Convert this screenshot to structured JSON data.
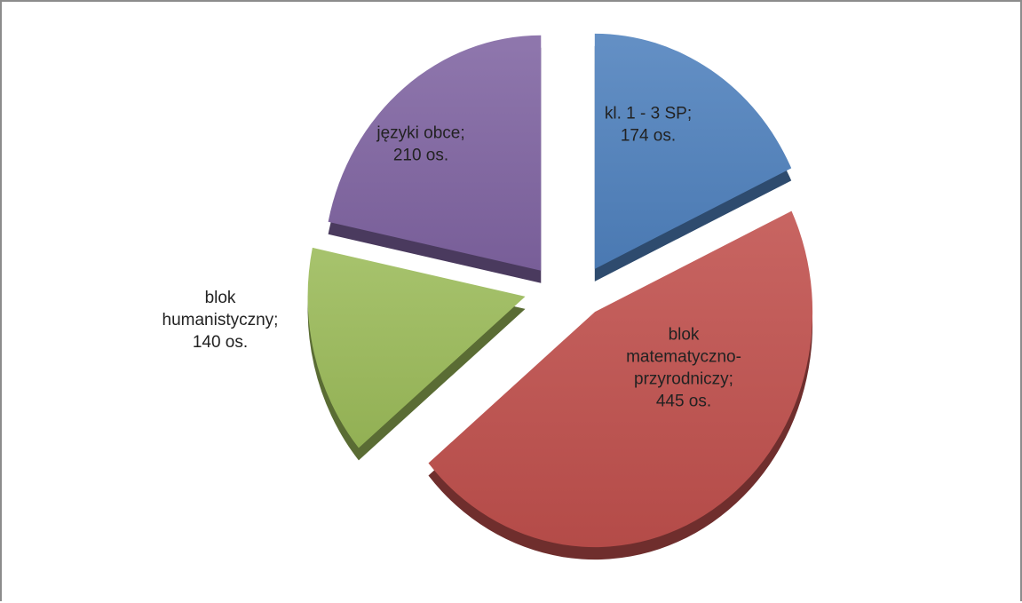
{
  "chart_data": {
    "type": "pie",
    "exploded": true,
    "three_d": true,
    "legend": "none",
    "value_unit": "os.",
    "slices": [
      {
        "name": "kl. 1 - 3 SP",
        "value": 174,
        "color": "#4f81bd",
        "label_lines": [
          "kl. 1 - 3 SP;",
          "174 os."
        ]
      },
      {
        "name": "blok matematyczno-przyrodniczy",
        "value": 445,
        "color": "#c0504d",
        "label_lines": [
          "blok",
          "matematyczno-",
          "przyrodniczy;",
          "445 os."
        ]
      },
      {
        "name": "blok humanistyczny",
        "value": 140,
        "color": "#9bbb59",
        "label_lines": [
          "blok",
          "humanistyczny;",
          "140 os."
        ]
      },
      {
        "name": "języki obce",
        "value": 210,
        "color": "#8064a2",
        "label_lines": [
          "języki obce;",
          "210 os."
        ]
      }
    ]
  }
}
